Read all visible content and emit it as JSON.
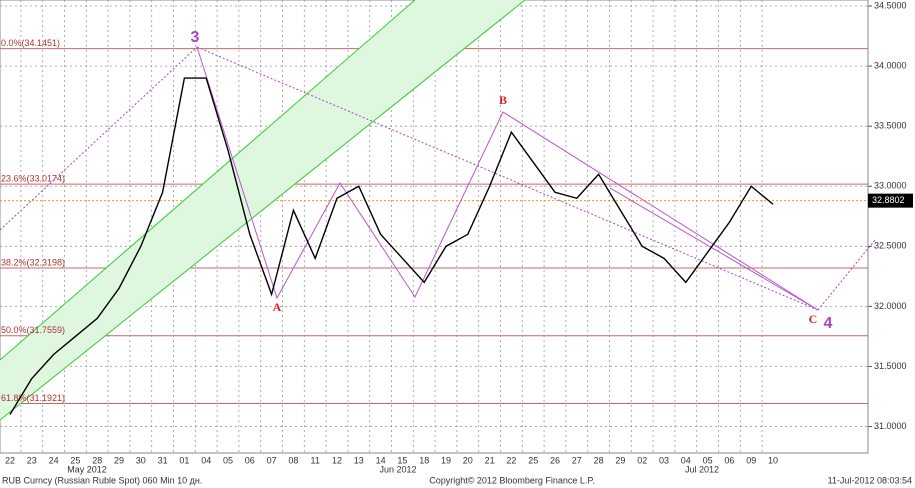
{
  "chart_data": {
    "type": "line",
    "categories": [
      "22",
      "23",
      "24",
      "25",
      "28",
      "29",
      "30",
      "31",
      "01",
      "04",
      "05",
      "06",
      "07",
      "08",
      "11",
      "12",
      "13",
      "14",
      "15",
      "18",
      "19",
      "20",
      "21",
      "22",
      "25",
      "26",
      "27",
      "28",
      "29",
      "02",
      "03",
      "04",
      "05",
      "06",
      "09",
      "10"
    ],
    "months": [
      "May 2012",
      "Jun 2012",
      "Jul 2012"
    ],
    "series": [
      {
        "name": "RUB Curncy",
        "color": "#000000",
        "values": [
          31.1,
          31.4,
          31.6,
          31.75,
          31.9,
          32.15,
          32.5,
          32.95,
          33.9,
          33.9,
          33.3,
          32.6,
          32.1,
          32.8,
          32.4,
          32.9,
          33.0,
          32.6,
          32.4,
          32.2,
          32.5,
          32.6,
          33.0,
          33.45,
          33.2,
          32.95,
          32.9,
          33.1,
          32.8,
          32.5,
          32.4,
          32.2,
          32.45,
          32.7,
          33.0,
          32.85
        ]
      }
    ],
    "ylim": [
      30.78,
      34.55
    ],
    "yticks": [
      {
        "value": 31,
        "label": "31.0000"
      },
      {
        "value": 31.5,
        "label": "31.5000"
      },
      {
        "value": 32,
        "label": "32.0000"
      },
      {
        "value": 32.5,
        "label": "32.5000"
      },
      {
        "value": 33,
        "label": "33.0000"
      },
      {
        "value": 33.5,
        "label": "33.5000"
      },
      {
        "value": 34,
        "label": "34.0000"
      },
      {
        "value": 34.5,
        "label": "34.5000"
      }
    ],
    "grid": true,
    "levels": [
      {
        "label": "0.0%(34.1451)",
        "value": 34.1451
      },
      {
        "label": "23.6%(33.0174)",
        "value": 33.0174
      },
      {
        "label": "38.2%(32.3198)",
        "value": 32.3198
      },
      {
        "label": "50.0%(31.7559)",
        "value": 31.7559
      },
      {
        "label": "61.8%(31.1921)",
        "value": 31.1921
      }
    ],
    "last_price": 32.8802,
    "annotations": [
      "3",
      "A",
      "B",
      "C",
      "4"
    ],
    "footer": {
      "left": "RUB Curncy (Russian Ruble Spot) 060 Min 10 дн.",
      "center": "Copyright© 2012 Bloomberg Finance L.P.",
      "right": "11-Jul-2012 08:03:54"
    }
  }
}
